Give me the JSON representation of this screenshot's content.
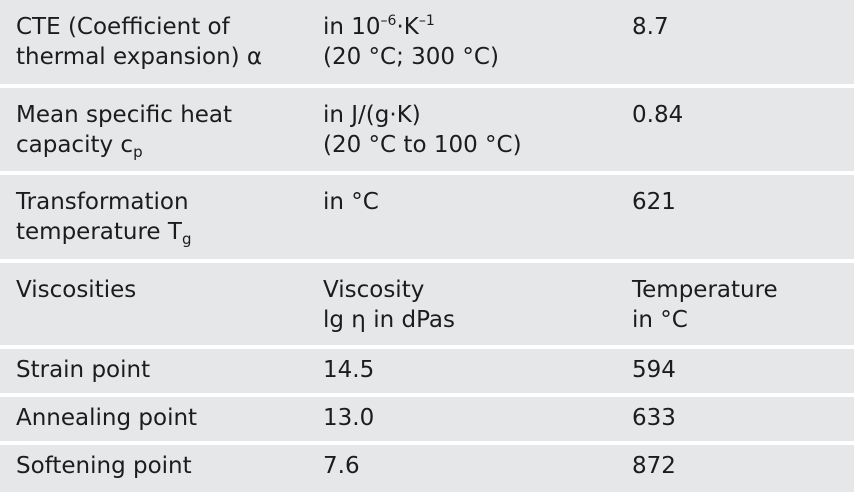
{
  "rows": [
    {
      "label_lines": [
        "CTE (Coefficient of",
        "thermal expansion) α"
      ],
      "unit_prefix": "in 10",
      "unit_sup1": "–6",
      "unit_mid": "·K",
      "unit_sup2": "–1",
      "unit_line2": "(20 °C; 300 °C)",
      "value": "8.7"
    },
    {
      "label_line1": "Mean specific heat",
      "label_line2_base": "capacity c",
      "label_line2_sub": "p",
      "unit_lines": [
        "in J/(g·K)",
        "(20 °C to 100 °C)"
      ],
      "value": "0.84"
    },
    {
      "label_line1": "Transformation",
      "label_line2_base": "temperature T",
      "label_line2_sub": "g",
      "unit_lines": [
        "in °C"
      ],
      "value": "621"
    },
    {
      "label": "Viscosities",
      "col2_lines": [
        "Viscosity",
        "lg η in dPas"
      ],
      "col3_lines": [
        "Temperature",
        "in °C"
      ]
    },
    {
      "label": "Strain point",
      "viscosity": "14.5",
      "temperature": "594"
    },
    {
      "label": "Annealing point",
      "viscosity": "13.0",
      "temperature": "633"
    },
    {
      "label": "Softening point",
      "viscosity": "7.6",
      "temperature": "872"
    }
  ]
}
